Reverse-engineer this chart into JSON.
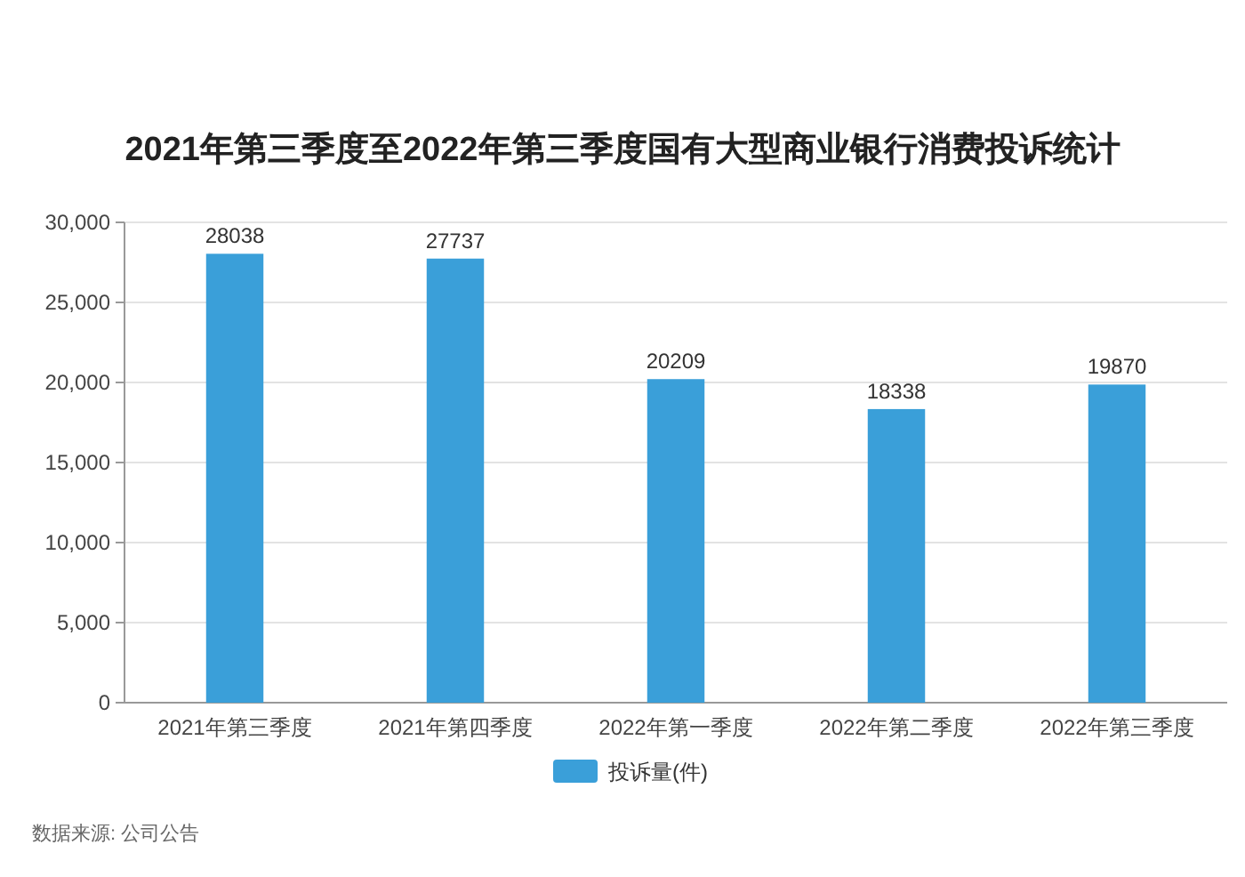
{
  "chart_data": {
    "type": "bar",
    "title": "2021年第三季度至2022年第三季度国有大型商业银行消费投诉统计",
    "categories": [
      "2021年第三季度",
      "2021年第四季度",
      "2022年第一季度",
      "2022年第二季度",
      "2022年第三季度"
    ],
    "series": [
      {
        "name": "投诉量(件)",
        "color": "#3a9fd9",
        "values": [
          28038,
          27737,
          20209,
          18338,
          19870
        ]
      }
    ],
    "ylim": [
      0,
      30000
    ],
    "yticks": [
      {
        "value": 0,
        "label": "0"
      },
      {
        "value": 5000,
        "label": "5,000"
      },
      {
        "value": 10000,
        "label": "10,000"
      },
      {
        "value": 15000,
        "label": "15,000"
      },
      {
        "value": 20000,
        "label": "20,000"
      },
      {
        "value": 25000,
        "label": "25,000"
      },
      {
        "value": 30000,
        "label": "30,000"
      }
    ],
    "grid": "y",
    "legend": "bottom",
    "data_labels": true,
    "annotations": [
      "数据来源: 公司公告"
    ]
  }
}
